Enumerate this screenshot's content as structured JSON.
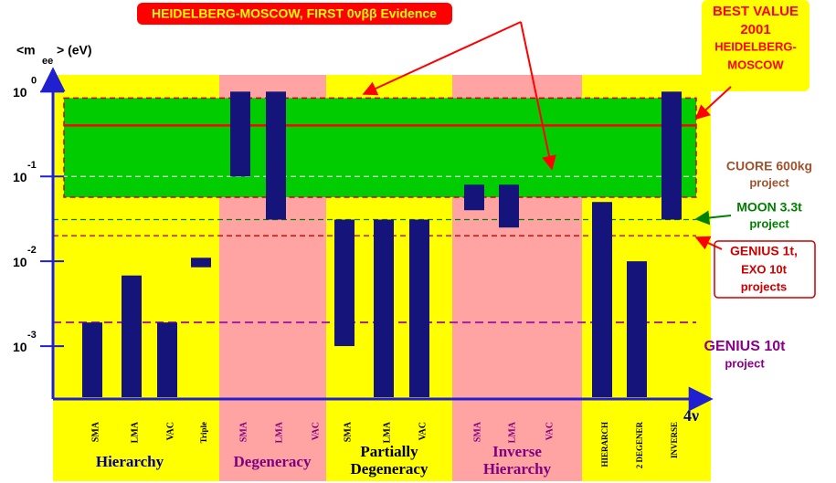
{
  "chart_data": {
    "type": "floating-bar",
    "title": "HEIDELBERG-MOSCOW, FIRST 0νββ Evidence",
    "y_label": "<m",
    "y_label_sub": "ee",
    "y_label_unit": "> (eV)",
    "x_label": "4ν",
    "best_value_box": [
      "BEST VALUE",
      "2001",
      "HEIDELBERG-",
      "MOSCOW"
    ],
    "log_y": true,
    "ylim": [
      0.00025,
      1.5
    ],
    "yticks": [
      {
        "value": 1,
        "label": "10",
        "exponent": "0"
      },
      {
        "value": 0.1,
        "label": "10",
        "exponent": "-1"
      },
      {
        "value": 0.01,
        "label": "10",
        "exponent": "-2"
      },
      {
        "value": 0.001,
        "label": "10",
        "exponent": "-3"
      }
    ],
    "categories": [
      "SMA",
      "LMA",
      "VAC",
      "Triple",
      "SMA",
      "LMA",
      "VAC",
      "SMA",
      "LMA",
      "VAC",
      "SMA",
      "LMA",
      "VAC",
      "HIERARCH",
      "2 DEGENER",
      "INVERSE"
    ],
    "low": [
      0.00025,
      0.00025,
      0.00025,
      0.0085,
      0.1,
      0.031,
      null,
      0.001,
      0.00025,
      0.00025,
      0.04,
      0.025,
      null,
      0.00025,
      0.00025,
      0.031
    ],
    "high": [
      0.0019,
      0.0068,
      0.0019,
      0.011,
      1,
      1,
      null,
      0.031,
      0.031,
      0.031,
      0.08,
      0.08,
      null,
      0.05,
      0.01,
      1
    ],
    "bar_color": "#14147a",
    "region_colors": [
      "#ffff00",
      "#ffa3a3"
    ],
    "category_label_colors": [
      "#000000",
      "#800080"
    ],
    "groups": [
      {
        "label": [
          "Hierarchy"
        ],
        "text_color": "#00008b"
      },
      {
        "label": [
          "Degeneracy"
        ],
        "text_color": "#800080"
      },
      {
        "label": [
          "Partially",
          "Degeneracy"
        ],
        "text_color": "#000000"
      },
      {
        "label": [
          "Inverse",
          "Hierarchy"
        ],
        "text_color": "#800080"
      }
    ],
    "evidence_band": [
      0.057,
      0.84
    ],
    "evidence_band_color": "#00cc00",
    "best_value": 0.4,
    "sensitivities": [
      {
        "label": [
          "CUORE 600kg",
          "project"
        ],
        "value": 0.1,
        "color": "#a0522d",
        "line_color": "#d8d8d8"
      },
      {
        "label": [
          "MOON 3.3t",
          "project"
        ],
        "value": 0.031,
        "color": "#008000",
        "line_color": "#008000"
      },
      {
        "label": [
          "GENIUS 1t,",
          "EXO 10t",
          "projects"
        ],
        "value": 0.02,
        "color": "#cc0000",
        "line_color": "#cc0000"
      },
      {
        "label": [
          "GENIUS 10t",
          "project"
        ],
        "value": 0.0019,
        "color": "#8b008b",
        "line_color": "#a020a0"
      }
    ]
  }
}
